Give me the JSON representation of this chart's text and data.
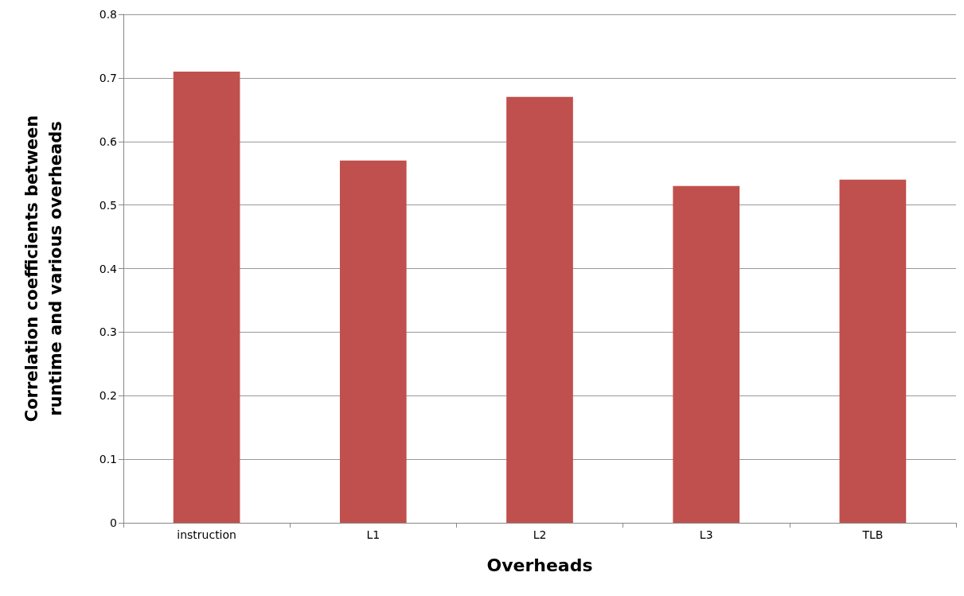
{
  "chart_data": {
    "type": "bar",
    "xlabel": "Overheads",
    "ylabel": "Correlation coefficients between runtime and various overheads",
    "categories": [
      "instruction",
      "L1",
      "L2",
      "L3",
      "TLB"
    ],
    "values": [
      0.71,
      0.57,
      0.67,
      0.53,
      0.54
    ],
    "color": "#c0504d",
    "ylim": [
      0,
      0.8
    ],
    "yticks": [
      0,
      0.1,
      0.2,
      0.3,
      0.4,
      0.5,
      0.6,
      0.7,
      0.8
    ],
    "grid": "y"
  }
}
